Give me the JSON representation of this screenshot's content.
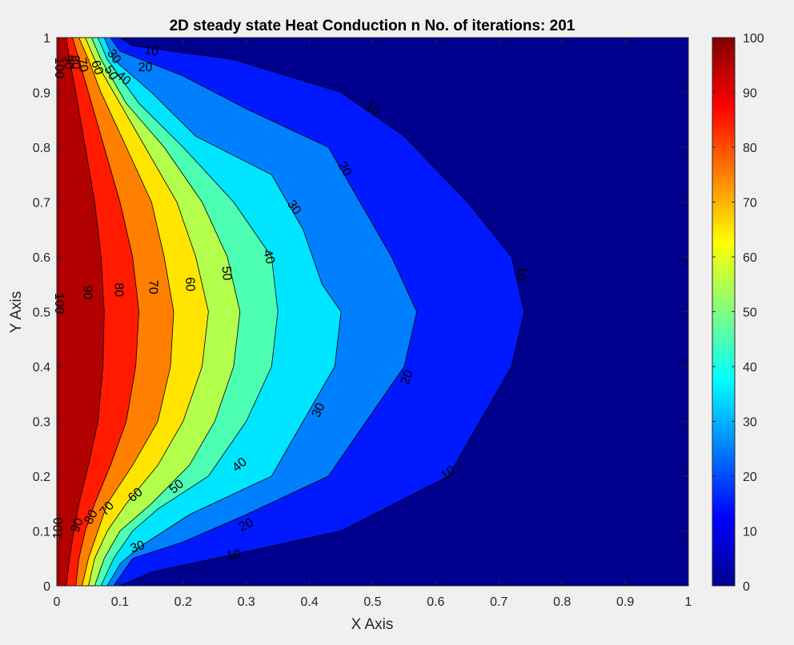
{
  "chart_data": {
    "type": "contour",
    "title": "2D steady state Heat Conduction n No. of iterations: 201",
    "xlabel": "X Axis",
    "ylabel": "Y Axis",
    "xlim": [
      0,
      1
    ],
    "ylim": [
      0,
      1
    ],
    "x_ticks": [
      "0",
      "0.1",
      "0.2",
      "0.3",
      "0.4",
      "0.5",
      "0.6",
      "0.7",
      "0.8",
      "0.9",
      "1"
    ],
    "y_ticks": [
      "0",
      "0.1",
      "0.2",
      "0.3",
      "0.4",
      "0.5",
      "0.6",
      "0.7",
      "0.8",
      "0.9",
      "1"
    ],
    "colorbar": {
      "range": [
        0,
        100
      ],
      "ticks": [
        "0",
        "10",
        "20",
        "30",
        "40",
        "50",
        "60",
        "70",
        "80",
        "90",
        "100"
      ],
      "colormap": "jet"
    },
    "levels": [
      {
        "level": 10,
        "label": "10",
        "points": [
          [
            0.1,
            1
          ],
          [
            0.12,
            0.985
          ],
          [
            0.28,
            0.96
          ],
          [
            0.45,
            0.9
          ],
          [
            0.55,
            0.82
          ],
          [
            0.65,
            0.7
          ],
          [
            0.72,
            0.6
          ],
          [
            0.74,
            0.5
          ],
          [
            0.72,
            0.4
          ],
          [
            0.67,
            0.3
          ],
          [
            0.62,
            0.2
          ],
          [
            0.45,
            0.1
          ],
          [
            0.25,
            0.05
          ],
          [
            0.15,
            0.025
          ],
          [
            0.1,
            0
          ]
        ]
      },
      {
        "level": 20,
        "label": "20",
        "points": [
          [
            0.085,
            1
          ],
          [
            0.1,
            0.975
          ],
          [
            0.2,
            0.93
          ],
          [
            0.3,
            0.87
          ],
          [
            0.43,
            0.8
          ],
          [
            0.48,
            0.7
          ],
          [
            0.53,
            0.6
          ],
          [
            0.57,
            0.5
          ],
          [
            0.55,
            0.4
          ],
          [
            0.49,
            0.3
          ],
          [
            0.43,
            0.2
          ],
          [
            0.3,
            0.13
          ],
          [
            0.2,
            0.08
          ],
          [
            0.12,
            0.05
          ],
          [
            0.09,
            0
          ]
        ]
      },
      {
        "level": 30,
        "label": "30",
        "points": [
          [
            0.075,
            1
          ],
          [
            0.09,
            0.96
          ],
          [
            0.15,
            0.9
          ],
          [
            0.22,
            0.82
          ],
          [
            0.34,
            0.75
          ],
          [
            0.39,
            0.65
          ],
          [
            0.42,
            0.55
          ],
          [
            0.45,
            0.5
          ],
          [
            0.44,
            0.4
          ],
          [
            0.39,
            0.3
          ],
          [
            0.34,
            0.2
          ],
          [
            0.21,
            0.13
          ],
          [
            0.13,
            0.07
          ],
          [
            0.1,
            0.04
          ],
          [
            0.08,
            0
          ]
        ]
      },
      {
        "level": 40,
        "label": "40",
        "points": [
          [
            0.065,
            1
          ],
          [
            0.08,
            0.96
          ],
          [
            0.13,
            0.88
          ],
          [
            0.2,
            0.8
          ],
          [
            0.28,
            0.7
          ],
          [
            0.34,
            0.6
          ],
          [
            0.35,
            0.5
          ],
          [
            0.34,
            0.4
          ],
          [
            0.3,
            0.3
          ],
          [
            0.24,
            0.2
          ],
          [
            0.16,
            0.14
          ],
          [
            0.12,
            0.1
          ],
          [
            0.09,
            0.05
          ],
          [
            0.07,
            0
          ]
        ]
      },
      {
        "level": 50,
        "label": "50",
        "points": [
          [
            0.055,
            1
          ],
          [
            0.07,
            0.96
          ],
          [
            0.11,
            0.88
          ],
          [
            0.17,
            0.8
          ],
          [
            0.23,
            0.7
          ],
          [
            0.27,
            0.6
          ],
          [
            0.29,
            0.5
          ],
          [
            0.28,
            0.4
          ],
          [
            0.25,
            0.3
          ],
          [
            0.21,
            0.22
          ],
          [
            0.15,
            0.15
          ],
          [
            0.1,
            0.1
          ],
          [
            0.075,
            0.05
          ],
          [
            0.06,
            0
          ]
        ]
      },
      {
        "level": 60,
        "label": "60",
        "points": [
          [
            0.045,
            1
          ],
          [
            0.06,
            0.96
          ],
          [
            0.09,
            0.9
          ],
          [
            0.14,
            0.8
          ],
          [
            0.19,
            0.7
          ],
          [
            0.22,
            0.6
          ],
          [
            0.24,
            0.5
          ],
          [
            0.23,
            0.4
          ],
          [
            0.2,
            0.3
          ],
          [
            0.16,
            0.22
          ],
          [
            0.11,
            0.15
          ],
          [
            0.08,
            0.1
          ],
          [
            0.06,
            0.05
          ],
          [
            0.05,
            0
          ]
        ]
      },
      {
        "level": 70,
        "label": "70",
        "points": [
          [
            0.035,
            1
          ],
          [
            0.05,
            0.96
          ],
          [
            0.07,
            0.9
          ],
          [
            0.11,
            0.8
          ],
          [
            0.15,
            0.7
          ],
          [
            0.17,
            0.6
          ],
          [
            0.185,
            0.5
          ],
          [
            0.18,
            0.4
          ],
          [
            0.16,
            0.3
          ],
          [
            0.12,
            0.22
          ],
          [
            0.08,
            0.15
          ],
          [
            0.065,
            0.1
          ],
          [
            0.05,
            0.05
          ],
          [
            0.04,
            0
          ]
        ]
      },
      {
        "level": 80,
        "label": "80",
        "points": [
          [
            0.025,
            1
          ],
          [
            0.035,
            0.96
          ],
          [
            0.05,
            0.9
          ],
          [
            0.075,
            0.8
          ],
          [
            0.1,
            0.7
          ],
          [
            0.12,
            0.6
          ],
          [
            0.13,
            0.5
          ],
          [
            0.125,
            0.4
          ],
          [
            0.11,
            0.3
          ],
          [
            0.085,
            0.22
          ],
          [
            0.06,
            0.15
          ],
          [
            0.045,
            0.1
          ],
          [
            0.035,
            0.05
          ],
          [
            0.03,
            0
          ]
        ]
      },
      {
        "level": 90,
        "label": "90",
        "points": [
          [
            0.015,
            1
          ],
          [
            0.02,
            0.96
          ],
          [
            0.03,
            0.9
          ],
          [
            0.045,
            0.8
          ],
          [
            0.06,
            0.7
          ],
          [
            0.07,
            0.6
          ],
          [
            0.075,
            0.5
          ],
          [
            0.073,
            0.4
          ],
          [
            0.065,
            0.3
          ],
          [
            0.05,
            0.22
          ],
          [
            0.035,
            0.15
          ],
          [
            0.027,
            0.1
          ],
          [
            0.02,
            0.05
          ],
          [
            0.015,
            0
          ]
        ]
      }
    ],
    "labels": [
      {
        "text": "10",
        "x": 0.15,
        "y": 0.975,
        "rotate": 10
      },
      {
        "text": "20",
        "x": 0.14,
        "y": 0.945,
        "rotate": 0
      },
      {
        "text": "30",
        "x": 0.09,
        "y": 0.965,
        "rotate": 55
      },
      {
        "text": "40",
        "x": 0.105,
        "y": 0.925,
        "rotate": 40
      },
      {
        "text": "50",
        "x": 0.085,
        "y": 0.935,
        "rotate": 60
      },
      {
        "text": "60",
        "x": 0.063,
        "y": 0.945,
        "rotate": 70
      },
      {
        "text": "70",
        "x": 0.04,
        "y": 0.95,
        "rotate": 80
      },
      {
        "text": "80",
        "x": 0.028,
        "y": 0.955,
        "rotate": 85
      },
      {
        "text": "90",
        "x": 0.018,
        "y": 0.955,
        "rotate": 88
      },
      {
        "text": "100",
        "x": 0.003,
        "y": 0.945,
        "rotate": 90
      },
      {
        "text": "10",
        "x": 0.5,
        "y": 0.87,
        "rotate": 30
      },
      {
        "text": "20",
        "x": 0.455,
        "y": 0.76,
        "rotate": 60
      },
      {
        "text": "30",
        "x": 0.375,
        "y": 0.69,
        "rotate": 55
      },
      {
        "text": "40",
        "x": 0.335,
        "y": 0.6,
        "rotate": 75
      },
      {
        "text": "50",
        "x": 0.268,
        "y": 0.57,
        "rotate": 85
      },
      {
        "text": "60",
        "x": 0.21,
        "y": 0.55,
        "rotate": 88
      },
      {
        "text": "70",
        "x": 0.152,
        "y": 0.545,
        "rotate": 90
      },
      {
        "text": "80",
        "x": 0.097,
        "y": 0.54,
        "rotate": 90
      },
      {
        "text": "90",
        "x": 0.048,
        "y": 0.535,
        "rotate": 90
      },
      {
        "text": "100",
        "x": 0.003,
        "y": 0.515,
        "rotate": 90
      },
      {
        "text": "10",
        "x": 0.735,
        "y": 0.57,
        "rotate": 95
      },
      {
        "text": "20",
        "x": 0.555,
        "y": 0.38,
        "rotate": -70
      },
      {
        "text": "30",
        "x": 0.415,
        "y": 0.32,
        "rotate": -65
      },
      {
        "text": "40",
        "x": 0.29,
        "y": 0.22,
        "rotate": -40
      },
      {
        "text": "50",
        "x": 0.19,
        "y": 0.18,
        "rotate": -40
      },
      {
        "text": "60",
        "x": 0.125,
        "y": 0.165,
        "rotate": -40
      },
      {
        "text": "70",
        "x": 0.08,
        "y": 0.14,
        "rotate": -50
      },
      {
        "text": "80",
        "x": 0.055,
        "y": 0.125,
        "rotate": -60
      },
      {
        "text": "90",
        "x": 0.033,
        "y": 0.11,
        "rotate": -70
      },
      {
        "text": "100",
        "x": 0.003,
        "y": 0.105,
        "rotate": -88
      },
      {
        "text": "10",
        "x": 0.62,
        "y": 0.205,
        "rotate": -35
      },
      {
        "text": "20",
        "x": 0.3,
        "y": 0.11,
        "rotate": -25
      },
      {
        "text": "30",
        "x": 0.128,
        "y": 0.07,
        "rotate": -20
      },
      {
        "text": "10",
        "x": 0.28,
        "y": 0.055,
        "rotate": -10
      }
    ]
  },
  "colors": {
    "background": "#f0f0f0",
    "axes": "#262626",
    "contour_line": "#000000"
  }
}
